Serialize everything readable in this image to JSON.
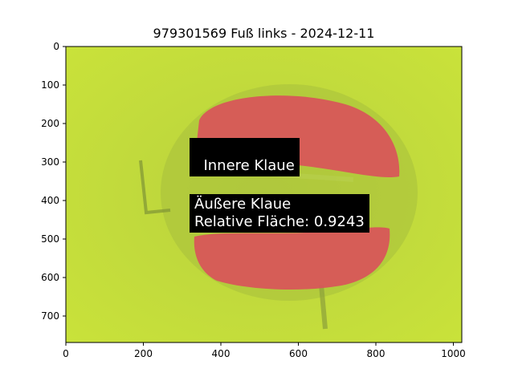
{
  "title": "979301569 Fuß links - 2024-12-11",
  "axes": {
    "x_ticks": [
      "0",
      "200",
      "400",
      "600",
      "800",
      "1000"
    ],
    "y_ticks": [
      "0",
      "100",
      "200",
      "300",
      "400",
      "500",
      "600",
      "700"
    ]
  },
  "annotations": {
    "inner": "Innere Klaue",
    "outer_line1": "Äußere Klaue",
    "outer_line2": "Relative Fläche: 0.9243"
  },
  "colors": {
    "background": "#c3dc3a",
    "claw_overlay": "#d9545a"
  }
}
